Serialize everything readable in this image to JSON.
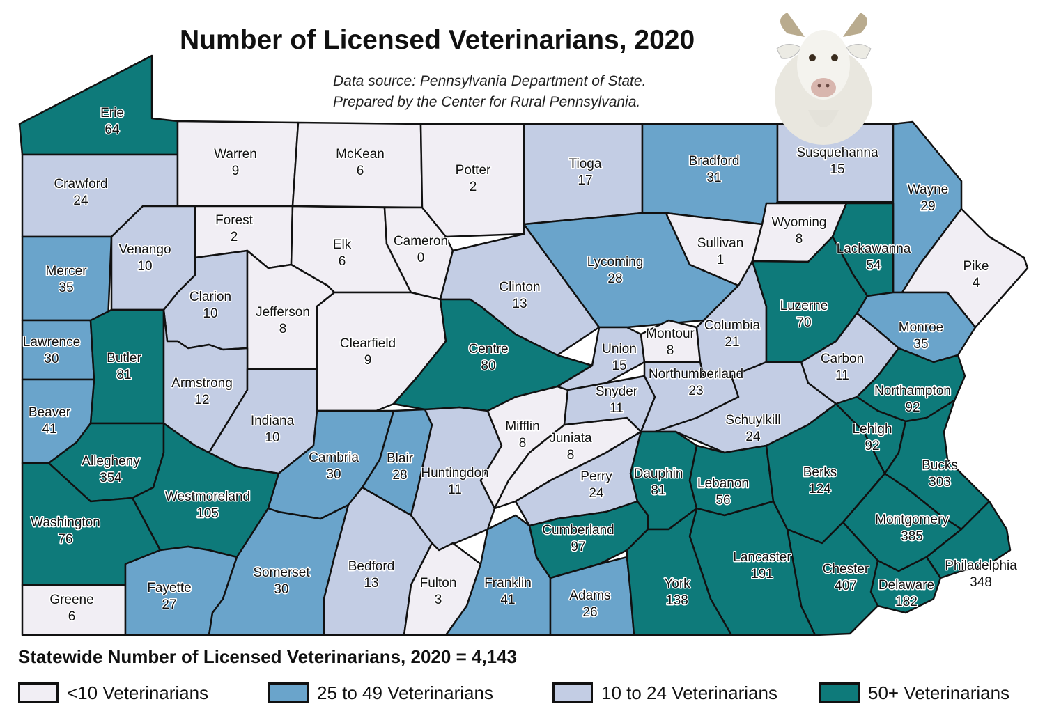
{
  "title": "Number of Licensed Veterinarians, 2020",
  "source_lines": [
    "Data source: Pennsylvania Department of State.",
    "Prepared by the Center for Rural Pennsylvania."
  ],
  "statewide": "Statewide Number of Licensed Veterinarians, 2020 = 4,143",
  "legend": [
    {
      "label": "<10 Veterinarians",
      "color": "#f1eef4"
    },
    {
      "label": "25 to 49 Veterinarians",
      "color": "#6aa4cb"
    },
    {
      "label": "10 to 24 Veterinarians",
      "color": "#c3cde4"
    },
    {
      "label": "50+ Veterinarians",
      "color": "#0e7a7a"
    }
  ],
  "colors": {
    "lt10": "#f1eef4",
    "c10_24": "#c3cde4",
    "c25_49": "#6aa4cb",
    "c50": "#0e7a7a",
    "border": "#111111"
  },
  "counties": [
    {
      "name": "Erie",
      "value": "64"
    },
    {
      "name": "Crawford",
      "value": "24"
    },
    {
      "name": "Warren",
      "value": "9"
    },
    {
      "name": "McKean",
      "value": "6"
    },
    {
      "name": "Potter",
      "value": "2"
    },
    {
      "name": "Tioga",
      "value": "17"
    },
    {
      "name": "Bradford",
      "value": "31"
    },
    {
      "name": "Susquehanna",
      "value": "15"
    },
    {
      "name": "Wayne",
      "value": "29"
    },
    {
      "name": "Mercer",
      "value": "35"
    },
    {
      "name": "Venango",
      "value": "10"
    },
    {
      "name": "Forest",
      "value": "2"
    },
    {
      "name": "Elk",
      "value": "6"
    },
    {
      "name": "Cameron",
      "value": "0"
    },
    {
      "name": "Clinton",
      "value": "13"
    },
    {
      "name": "Lycoming",
      "value": "28"
    },
    {
      "name": "Sullivan",
      "value": "1"
    },
    {
      "name": "Wyoming",
      "value": "8"
    },
    {
      "name": "Lackawanna",
      "value": "54"
    },
    {
      "name": "Pike",
      "value": "4"
    },
    {
      "name": "Lawrence",
      "value": "30"
    },
    {
      "name": "Butler",
      "value": "81"
    },
    {
      "name": "Clarion",
      "value": "10"
    },
    {
      "name": "Jefferson",
      "value": "8"
    },
    {
      "name": "Clearfield",
      "value": "9"
    },
    {
      "name": "Centre",
      "value": "80"
    },
    {
      "name": "Union",
      "value": "15"
    },
    {
      "name": "Montour",
      "value": "8"
    },
    {
      "name": "Columbia",
      "value": "21"
    },
    {
      "name": "Luzerne",
      "value": "70"
    },
    {
      "name": "Monroe",
      "value": "35"
    },
    {
      "name": "Carbon",
      "value": "11"
    },
    {
      "name": "Northumberland",
      "value": "23"
    },
    {
      "name": "Snyder",
      "value": "11"
    },
    {
      "name": "Beaver",
      "value": "41"
    },
    {
      "name": "Armstrong",
      "value": "12"
    },
    {
      "name": "Indiana",
      "value": "10"
    },
    {
      "name": "Allegheny",
      "value": "354"
    },
    {
      "name": "Westmoreland",
      "value": "105"
    },
    {
      "name": "Washington",
      "value": "76"
    },
    {
      "name": "Greene",
      "value": "6"
    },
    {
      "name": "Fayette",
      "value": "27"
    },
    {
      "name": "Somerset",
      "value": "30"
    },
    {
      "name": "Cambria",
      "value": "30"
    },
    {
      "name": "Blair",
      "value": "28"
    },
    {
      "name": "Bedford",
      "value": "13"
    },
    {
      "name": "Huntingdon",
      "value": "11"
    },
    {
      "name": "Fulton",
      "value": "3"
    },
    {
      "name": "Mifflin",
      "value": "8"
    },
    {
      "name": "Juniata",
      "value": "8"
    },
    {
      "name": "Perry",
      "value": "24"
    },
    {
      "name": "Franklin",
      "value": "41"
    },
    {
      "name": "Cumberland",
      "value": "97"
    },
    {
      "name": "Adams",
      "value": "26"
    },
    {
      "name": "Dauphin",
      "value": "81"
    },
    {
      "name": "Lebanon",
      "value": "56"
    },
    {
      "name": "York",
      "value": "138"
    },
    {
      "name": "Lancaster",
      "value": "191"
    },
    {
      "name": "Schuylkill",
      "value": "24"
    },
    {
      "name": "Berks",
      "value": "124"
    },
    {
      "name": "Northampton",
      "value": "92"
    },
    {
      "name": "Lehigh",
      "value": "92"
    },
    {
      "name": "Bucks",
      "value": "303"
    },
    {
      "name": "Montgomery",
      "value": "385"
    },
    {
      "name": "Chester",
      "value": "407"
    },
    {
      "name": "Delaware",
      "value": "182"
    },
    {
      "name": "Philadelphia",
      "value": "348"
    }
  ]
}
